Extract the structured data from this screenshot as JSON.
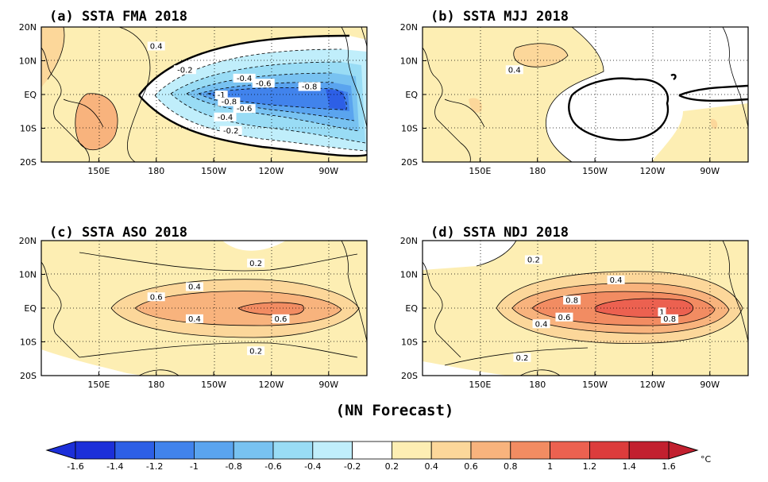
{
  "panels": [
    {
      "id": "a",
      "title": "(a) SSTA  FMA 2018",
      "labels": [
        {
          "text": "0.4",
          "lon": 180,
          "lat": 14
        },
        {
          "text": "-0.2",
          "lon": 195,
          "lat": 7
        },
        {
          "text": "-0.4",
          "lon": 226,
          "lat": 4.5
        },
        {
          "text": "-0.6",
          "lon": 236,
          "lat": 3
        },
        {
          "text": "-0.8",
          "lon": 260,
          "lat": 2
        },
        {
          "text": "-1",
          "lon": 214,
          "lat": -0.5
        },
        {
          "text": "-0.8",
          "lon": 218,
          "lat": -2.5
        },
        {
          "text": "-0.6",
          "lon": 226,
          "lat": -4.5
        },
        {
          "text": "-0.4",
          "lon": 216,
          "lat": -7
        },
        {
          "text": "-0.2",
          "lon": 219,
          "lat": -11
        }
      ]
    },
    {
      "id": "b",
      "title": "(b) SSTA  MJJ 2018",
      "labels": [
        {
          "text": "0.4",
          "lon": 168,
          "lat": 7
        }
      ]
    },
    {
      "id": "c",
      "title": "(c) SSTA  ASO 2018",
      "labels": [
        {
          "text": "0.2",
          "lon": 232,
          "lat": 13
        },
        {
          "text": "0.4",
          "lon": 200,
          "lat": 6
        },
        {
          "text": "0.6",
          "lon": 180,
          "lat": 3
        },
        {
          "text": "0.4",
          "lon": 200,
          "lat": -3.5
        },
        {
          "text": "0.6",
          "lon": 245,
          "lat": -3.5
        },
        {
          "text": "0.2",
          "lon": 232,
          "lat": -13
        }
      ]
    },
    {
      "id": "d",
      "title": "(d) SSTA  NDJ 2018",
      "labels": [
        {
          "text": "0.2",
          "lon": 178,
          "lat": 14
        },
        {
          "text": "0.4",
          "lon": 221,
          "lat": 8
        },
        {
          "text": "0.8",
          "lon": 198,
          "lat": 2
        },
        {
          "text": "1",
          "lon": 245,
          "lat": -1.5
        },
        {
          "text": "0.8",
          "lon": 249,
          "lat": -3.5
        },
        {
          "text": "0.6",
          "lon": 194,
          "lat": -3
        },
        {
          "text": "0.4",
          "lon": 182,
          "lat": -5
        },
        {
          "text": "0.2",
          "lon": 172,
          "lat": -15
        }
      ]
    }
  ],
  "axes": {
    "lon_ticks": [
      {
        "lon": 150,
        "label": "150E"
      },
      {
        "lon": 180,
        "label": "180"
      },
      {
        "lon": 210,
        "label": "150W"
      },
      {
        "lon": 240,
        "label": "120W"
      },
      {
        "lon": 270,
        "label": "90W"
      }
    ],
    "lat_ticks": [
      {
        "lat": 20,
        "label": "20N"
      },
      {
        "lat": 10,
        "label": "10N"
      },
      {
        "lat": 0,
        "label": "EQ"
      },
      {
        "lat": -10,
        "label": "10S"
      },
      {
        "lat": -20,
        "label": "20S"
      }
    ],
    "lon_range": [
      120,
      290
    ],
    "lat_range": [
      -20,
      20
    ]
  },
  "footer": "(NN Forecast)",
  "colorbar": {
    "levels": [
      "-1.6",
      "-1.4",
      "-1.2",
      "-1",
      "-0.8",
      "-0.6",
      "-0.4",
      "-0.2",
      "0.2",
      "0.4",
      "0.6",
      "0.8",
      "1",
      "1.2",
      "1.4",
      "1.6"
    ],
    "colors": [
      "#1c2fd9",
      "#2d5fe6",
      "#4183ec",
      "#5aa4ef",
      "#78c2f1",
      "#99dcf5",
      "#c0eefb",
      "#ffffff",
      "#fdeeb3",
      "#fcd79a",
      "#f8b37d",
      "#f28c62",
      "#ec6150",
      "#dc3c3c",
      "#c2202f"
    ],
    "unit": "°C"
  },
  "chart_data": [
    {
      "type": "heatmap",
      "title": "(a) SSTA  FMA 2018",
      "field": [
        {
          "kind": "tongue",
          "lon0": 178,
          "lon1": 282,
          "lat_width": 13,
          "min": -1.1
        },
        {
          "kind": "warm",
          "lon0": 122,
          "lon1": 185,
          "max": 0.6
        }
      ]
    },
    {
      "type": "heatmap",
      "title": "(b) SSTA  MJJ 2018",
      "field": [
        {
          "kind": "broad-warm",
          "lon0": 120,
          "lon1": 290,
          "max": 0.4
        },
        {
          "kind": "neutral-patch",
          "lon_center": 222,
          "lat_center": -2
        }
      ]
    },
    {
      "type": "heatmap",
      "title": "(c) SSTA  ASO 2018",
      "field": [
        {
          "kind": "tongue",
          "lon0": 160,
          "lon1": 283,
          "lat_width": 10,
          "max": 0.7
        }
      ]
    },
    {
      "type": "heatmap",
      "title": "(d) SSTA  NDJ 2018",
      "field": [
        {
          "kind": "tongue",
          "lon0": 155,
          "lon1": 283,
          "lat_width": 12,
          "max": 1.1
        }
      ]
    }
  ]
}
